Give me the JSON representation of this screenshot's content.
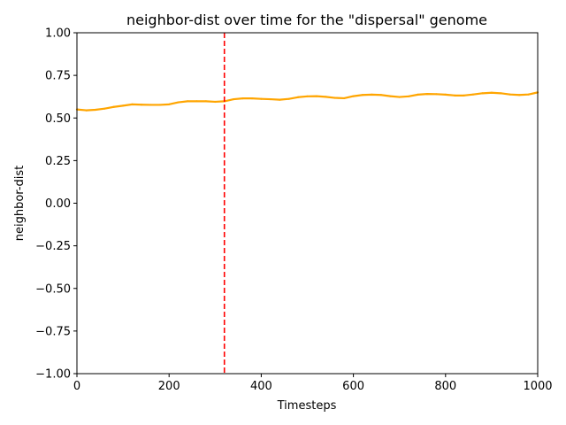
{
  "chart_data": {
    "type": "line",
    "title": "neighbor-dist over time for the \"dispersal\" genome",
    "xlabel": "Timesteps",
    "ylabel": "neighbor-dist",
    "xlim": [
      0,
      1000
    ],
    "ylim": [
      -1.0,
      1.0
    ],
    "x_ticks": [
      "0",
      "200",
      "400",
      "600",
      "800",
      "1000"
    ],
    "x_tick_values": [
      0,
      200,
      400,
      600,
      800,
      1000
    ],
    "y_ticks": [
      "−1.00",
      "−0.75",
      "−0.50",
      "−0.25",
      "0.00",
      "0.25",
      "0.50",
      "0.75",
      "1.00"
    ],
    "y_tick_values": [
      -1.0,
      -0.75,
      -0.5,
      -0.25,
      0.0,
      0.25,
      0.5,
      0.75,
      1.0
    ],
    "grid": false,
    "series": [
      {
        "color": "#ffa500",
        "x": [
          0,
          20,
          40,
          60,
          80,
          100,
          120,
          140,
          160,
          180,
          200,
          220,
          240,
          260,
          280,
          300,
          320,
          340,
          360,
          380,
          400,
          420,
          440,
          460,
          480,
          500,
          520,
          540,
          560,
          580,
          600,
          620,
          640,
          660,
          680,
          700,
          720,
          740,
          760,
          780,
          800,
          820,
          840,
          860,
          880,
          900,
          920,
          940,
          960,
          980,
          1000
        ],
        "values": [
          0.55,
          0.545,
          0.548,
          0.555,
          0.565,
          0.572,
          0.58,
          0.578,
          0.577,
          0.577,
          0.58,
          0.592,
          0.598,
          0.598,
          0.598,
          0.595,
          0.598,
          0.61,
          0.615,
          0.615,
          0.612,
          0.61,
          0.607,
          0.612,
          0.622,
          0.627,
          0.628,
          0.624,
          0.618,
          0.616,
          0.628,
          0.635,
          0.637,
          0.635,
          0.628,
          0.623,
          0.627,
          0.637,
          0.641,
          0.64,
          0.637,
          0.632,
          0.632,
          0.638,
          0.645,
          0.648,
          0.645,
          0.638,
          0.635,
          0.638,
          0.65
        ]
      }
    ],
    "vline": {
      "x": 320,
      "color": "#ff0000",
      "style": "dashed"
    }
  }
}
